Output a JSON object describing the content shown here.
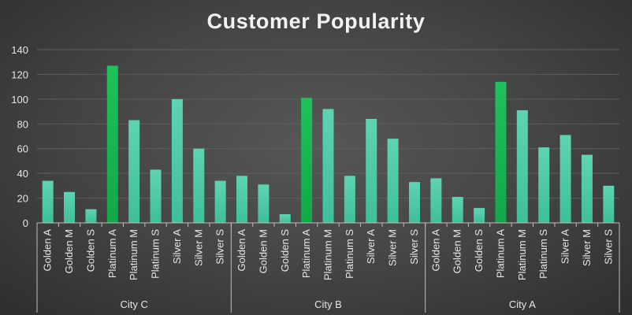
{
  "chart_data": {
    "type": "bar",
    "title": "Customer Popularity",
    "xlabel": "",
    "ylabel": "",
    "ylim": [
      0,
      140
    ],
    "yticks": [
      0,
      20,
      40,
      60,
      80,
      100,
      120,
      140
    ],
    "grid": true,
    "legend": "none",
    "groups": [
      {
        "name": "City C",
        "categories": [
          "Golden A",
          "Golden M",
          "Golden S",
          "Platinum A",
          "Platinum M",
          "Platinum S",
          "Silver A",
          "Silver M",
          "Silver S"
        ],
        "values": [
          34,
          25,
          11,
          127,
          83,
          43,
          100,
          60,
          34
        ]
      },
      {
        "name": "City B",
        "categories": [
          "Golden A",
          "Golden M",
          "Golden S",
          "Platinum A",
          "Platinum M",
          "Platinum S",
          "Silver A",
          "Silver M",
          "Silver S"
        ],
        "values": [
          38,
          31,
          7,
          101,
          92,
          38,
          84,
          68,
          33
        ]
      },
      {
        "name": "City A",
        "categories": [
          "Golden A",
          "Golden M",
          "Golden S",
          "Platinum A",
          "Platinum M",
          "Platinum S",
          "Silver A",
          "Silver M",
          "Silver S"
        ],
        "values": [
          36,
          21,
          12,
          114,
          91,
          61,
          71,
          55,
          30
        ]
      }
    ],
    "colors": {
      "bar": "#3fbf9a",
      "bar_top": "#5fd3b2",
      "highlight": "#12a84a",
      "highlight_top": "#1ec25a",
      "grid": "#5e5e5e",
      "axis": "#bdbdbd"
    }
  }
}
